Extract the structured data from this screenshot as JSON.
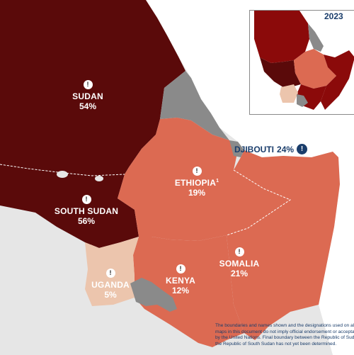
{
  "colors": {
    "sea": "#ffffff",
    "land_outside": "#e6e6e6",
    "dark_red": "#5a0a0a",
    "salmon": "#dc6a52",
    "light_peach": "#ecc5ad",
    "grey": "#8a8a8a",
    "navy": "#1a3d6b"
  },
  "icon": {
    "name": "info-icon",
    "glyph": "!"
  },
  "countries": [
    {
      "key": "sudan",
      "name": "SUDAN",
      "value": "54%"
    },
    {
      "key": "south_sudan",
      "name": "SOUTH SUDAN",
      "value": "56%"
    },
    {
      "key": "ethiopia",
      "name": "ETHIOPIA",
      "footnote": "1",
      "value": "19%"
    },
    {
      "key": "somalia",
      "name": "SOMALIA",
      "value": "21%"
    },
    {
      "key": "kenya",
      "name": "KENYA",
      "value": "12%"
    },
    {
      "key": "uganda",
      "name": "UGANDA",
      "value": "5%"
    },
    {
      "key": "djibouti",
      "name": "DJIBOUTI",
      "value": "24%"
    }
  ],
  "inset": {
    "year": "2023"
  },
  "disclaimer": [
    "The boundaries and names shown and the designations used on all",
    "maps in this document do not imply official endorsement or acceptance",
    "by the United Nations. Final boundary between the Republic of Sudan",
    "the Republic of South Sudan has not yet been determined."
  ]
}
